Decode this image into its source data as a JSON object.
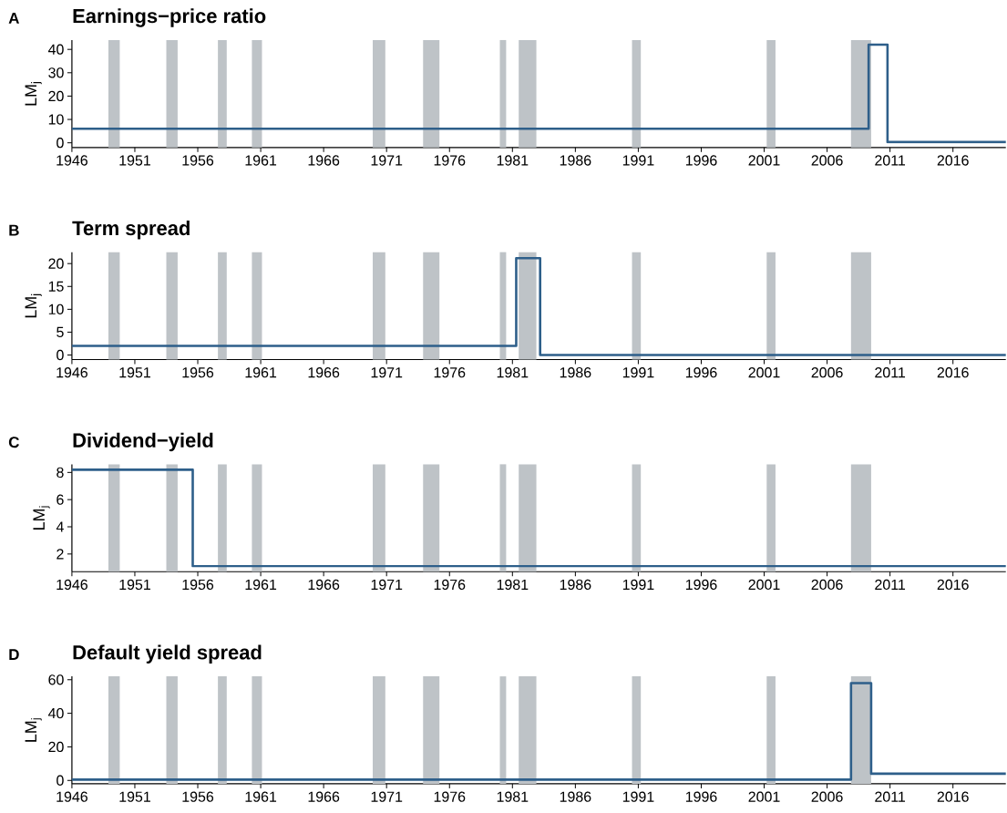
{
  "chart_data": [
    {
      "type": "step",
      "title": "Earnings−price ratio",
      "ylabel": "LM$_{j}$",
      "annotations": [
        "A"
      ],
      "x": [
        1946,
        2009.3,
        2010.8,
        2020.2
      ],
      "values": [
        6,
        42,
        0.3,
        0.3
      ],
      "color": "#2e5f8a",
      "xlim": [
        1946,
        2020.2
      ],
      "xticks": [
        1946,
        1951,
        1956,
        1961,
        1966,
        1971,
        1976,
        1981,
        1986,
        1991,
        1996,
        2001,
        2006,
        2011,
        2016
      ],
      "ylim": [
        -2,
        44
      ],
      "yticks": [
        0,
        10,
        20,
        30,
        40
      ],
      "grid": false,
      "legend": false,
      "bands": [
        {
          "axis": "x",
          "from": 1948.9,
          "to": 1949.8,
          "color": "#bec3c7"
        },
        {
          "axis": "x",
          "from": 1953.5,
          "to": 1954.4,
          "color": "#bec3c7"
        },
        {
          "axis": "x",
          "from": 1957.6,
          "to": 1958.3,
          "color": "#bec3c7"
        },
        {
          "axis": "x",
          "from": 1960.3,
          "to": 1961.1,
          "color": "#bec3c7"
        },
        {
          "axis": "x",
          "from": 1969.9,
          "to": 1970.9,
          "color": "#bec3c7"
        },
        {
          "axis": "x",
          "from": 1973.9,
          "to": 1975.2,
          "color": "#bec3c7"
        },
        {
          "axis": "x",
          "from": 1980.0,
          "to": 1980.5,
          "color": "#bec3c7"
        },
        {
          "axis": "x",
          "from": 1981.5,
          "to": 1982.9,
          "color": "#bec3c7"
        },
        {
          "axis": "x",
          "from": 1990.5,
          "to": 1991.2,
          "color": "#bec3c7"
        },
        {
          "axis": "x",
          "from": 2001.2,
          "to": 2001.9,
          "color": "#bec3c7"
        },
        {
          "axis": "x",
          "from": 2007.9,
          "to": 2009.5,
          "color": "#bec3c7"
        }
      ]
    },
    {
      "type": "step",
      "title": "Term spread",
      "ylabel": "LM$_{j}$",
      "annotations": [
        "B"
      ],
      "x": [
        1946,
        1981.3,
        1983.2,
        2020.2
      ],
      "values": [
        2,
        21.2,
        0,
        0
      ],
      "color": "#2e5f8a",
      "xlim": [
        1946,
        2020.2
      ],
      "xticks": [
        1946,
        1951,
        1956,
        1961,
        1966,
        1971,
        1976,
        1981,
        1986,
        1991,
        1996,
        2001,
        2006,
        2011,
        2016
      ],
      "ylim": [
        -1,
        22.5
      ],
      "yticks": [
        0,
        5,
        10,
        15,
        20
      ],
      "grid": false,
      "legend": false,
      "bands": [
        {
          "axis": "x",
          "from": 1948.9,
          "to": 1949.8,
          "color": "#bec3c7"
        },
        {
          "axis": "x",
          "from": 1953.5,
          "to": 1954.4,
          "color": "#bec3c7"
        },
        {
          "axis": "x",
          "from": 1957.6,
          "to": 1958.3,
          "color": "#bec3c7"
        },
        {
          "axis": "x",
          "from": 1960.3,
          "to": 1961.1,
          "color": "#bec3c7"
        },
        {
          "axis": "x",
          "from": 1969.9,
          "to": 1970.9,
          "color": "#bec3c7"
        },
        {
          "axis": "x",
          "from": 1973.9,
          "to": 1975.2,
          "color": "#bec3c7"
        },
        {
          "axis": "x",
          "from": 1980.0,
          "to": 1980.5,
          "color": "#bec3c7"
        },
        {
          "axis": "x",
          "from": 1981.5,
          "to": 1982.9,
          "color": "#bec3c7"
        },
        {
          "axis": "x",
          "from": 1990.5,
          "to": 1991.2,
          "color": "#bec3c7"
        },
        {
          "axis": "x",
          "from": 2001.2,
          "to": 2001.9,
          "color": "#bec3c7"
        },
        {
          "axis": "x",
          "from": 2007.9,
          "to": 2009.5,
          "color": "#bec3c7"
        }
      ]
    },
    {
      "type": "step",
      "title": "Dividend−yield",
      "ylabel": "LM$_{j}$",
      "annotations": [
        "C"
      ],
      "x": [
        1946,
        1955.6,
        2020.2
      ],
      "values": [
        8.2,
        1.1,
        1.1
      ],
      "color": "#2e5f8a",
      "xlim": [
        1946,
        2020.2
      ],
      "xticks": [
        1946,
        1951,
        1956,
        1961,
        1966,
        1971,
        1976,
        1981,
        1986,
        1991,
        1996,
        2001,
        2006,
        2011,
        2016
      ],
      "ylim": [
        0.7,
        8.6
      ],
      "yticks": [
        2,
        4,
        6,
        8
      ],
      "grid": false,
      "legend": false,
      "bands": [
        {
          "axis": "x",
          "from": 1948.9,
          "to": 1949.8,
          "color": "#bec3c7"
        },
        {
          "axis": "x",
          "from": 1953.5,
          "to": 1954.4,
          "color": "#bec3c7"
        },
        {
          "axis": "x",
          "from": 1957.6,
          "to": 1958.3,
          "color": "#bec3c7"
        },
        {
          "axis": "x",
          "from": 1960.3,
          "to": 1961.1,
          "color": "#bec3c7"
        },
        {
          "axis": "x",
          "from": 1969.9,
          "to": 1970.9,
          "color": "#bec3c7"
        },
        {
          "axis": "x",
          "from": 1973.9,
          "to": 1975.2,
          "color": "#bec3c7"
        },
        {
          "axis": "x",
          "from": 1980.0,
          "to": 1980.5,
          "color": "#bec3c7"
        },
        {
          "axis": "x",
          "from": 1981.5,
          "to": 1982.9,
          "color": "#bec3c7"
        },
        {
          "axis": "x",
          "from": 1990.5,
          "to": 1991.2,
          "color": "#bec3c7"
        },
        {
          "axis": "x",
          "from": 2001.2,
          "to": 2001.9,
          "color": "#bec3c7"
        },
        {
          "axis": "x",
          "from": 2007.9,
          "to": 2009.5,
          "color": "#bec3c7"
        }
      ]
    },
    {
      "type": "step",
      "title": "Default yield spread",
      "ylabel": "LM$_{j}$",
      "annotations": [
        "D"
      ],
      "x": [
        1946,
        2007.9,
        2009.5,
        2020.2
      ],
      "values": [
        0.5,
        58,
        4,
        4
      ],
      "color": "#2e5f8a",
      "xlim": [
        1946,
        2020.2
      ],
      "xticks": [
        1946,
        1951,
        1956,
        1961,
        1966,
        1971,
        1976,
        1981,
        1986,
        1991,
        1996,
        2001,
        2006,
        2011,
        2016
      ],
      "ylim": [
        -2,
        62
      ],
      "yticks": [
        0,
        20,
        40,
        60
      ],
      "grid": false,
      "legend": false,
      "bands": [
        {
          "axis": "x",
          "from": 1948.9,
          "to": 1949.8,
          "color": "#bec3c7"
        },
        {
          "axis": "x",
          "from": 1953.5,
          "to": 1954.4,
          "color": "#bec3c7"
        },
        {
          "axis": "x",
          "from": 1957.6,
          "to": 1958.3,
          "color": "#bec3c7"
        },
        {
          "axis": "x",
          "from": 1960.3,
          "to": 1961.1,
          "color": "#bec3c7"
        },
        {
          "axis": "x",
          "from": 1969.9,
          "to": 1970.9,
          "color": "#bec3c7"
        },
        {
          "axis": "x",
          "from": 1973.9,
          "to": 1975.2,
          "color": "#bec3c7"
        },
        {
          "axis": "x",
          "from": 1980.0,
          "to": 1980.5,
          "color": "#bec3c7"
        },
        {
          "axis": "x",
          "from": 1981.5,
          "to": 1982.9,
          "color": "#bec3c7"
        },
        {
          "axis": "x",
          "from": 1990.5,
          "to": 1991.2,
          "color": "#bec3c7"
        },
        {
          "axis": "x",
          "from": 2001.2,
          "to": 2001.9,
          "color": "#bec3c7"
        },
        {
          "axis": "x",
          "from": 2007.9,
          "to": 2009.5,
          "color": "#bec3c7"
        }
      ]
    }
  ]
}
